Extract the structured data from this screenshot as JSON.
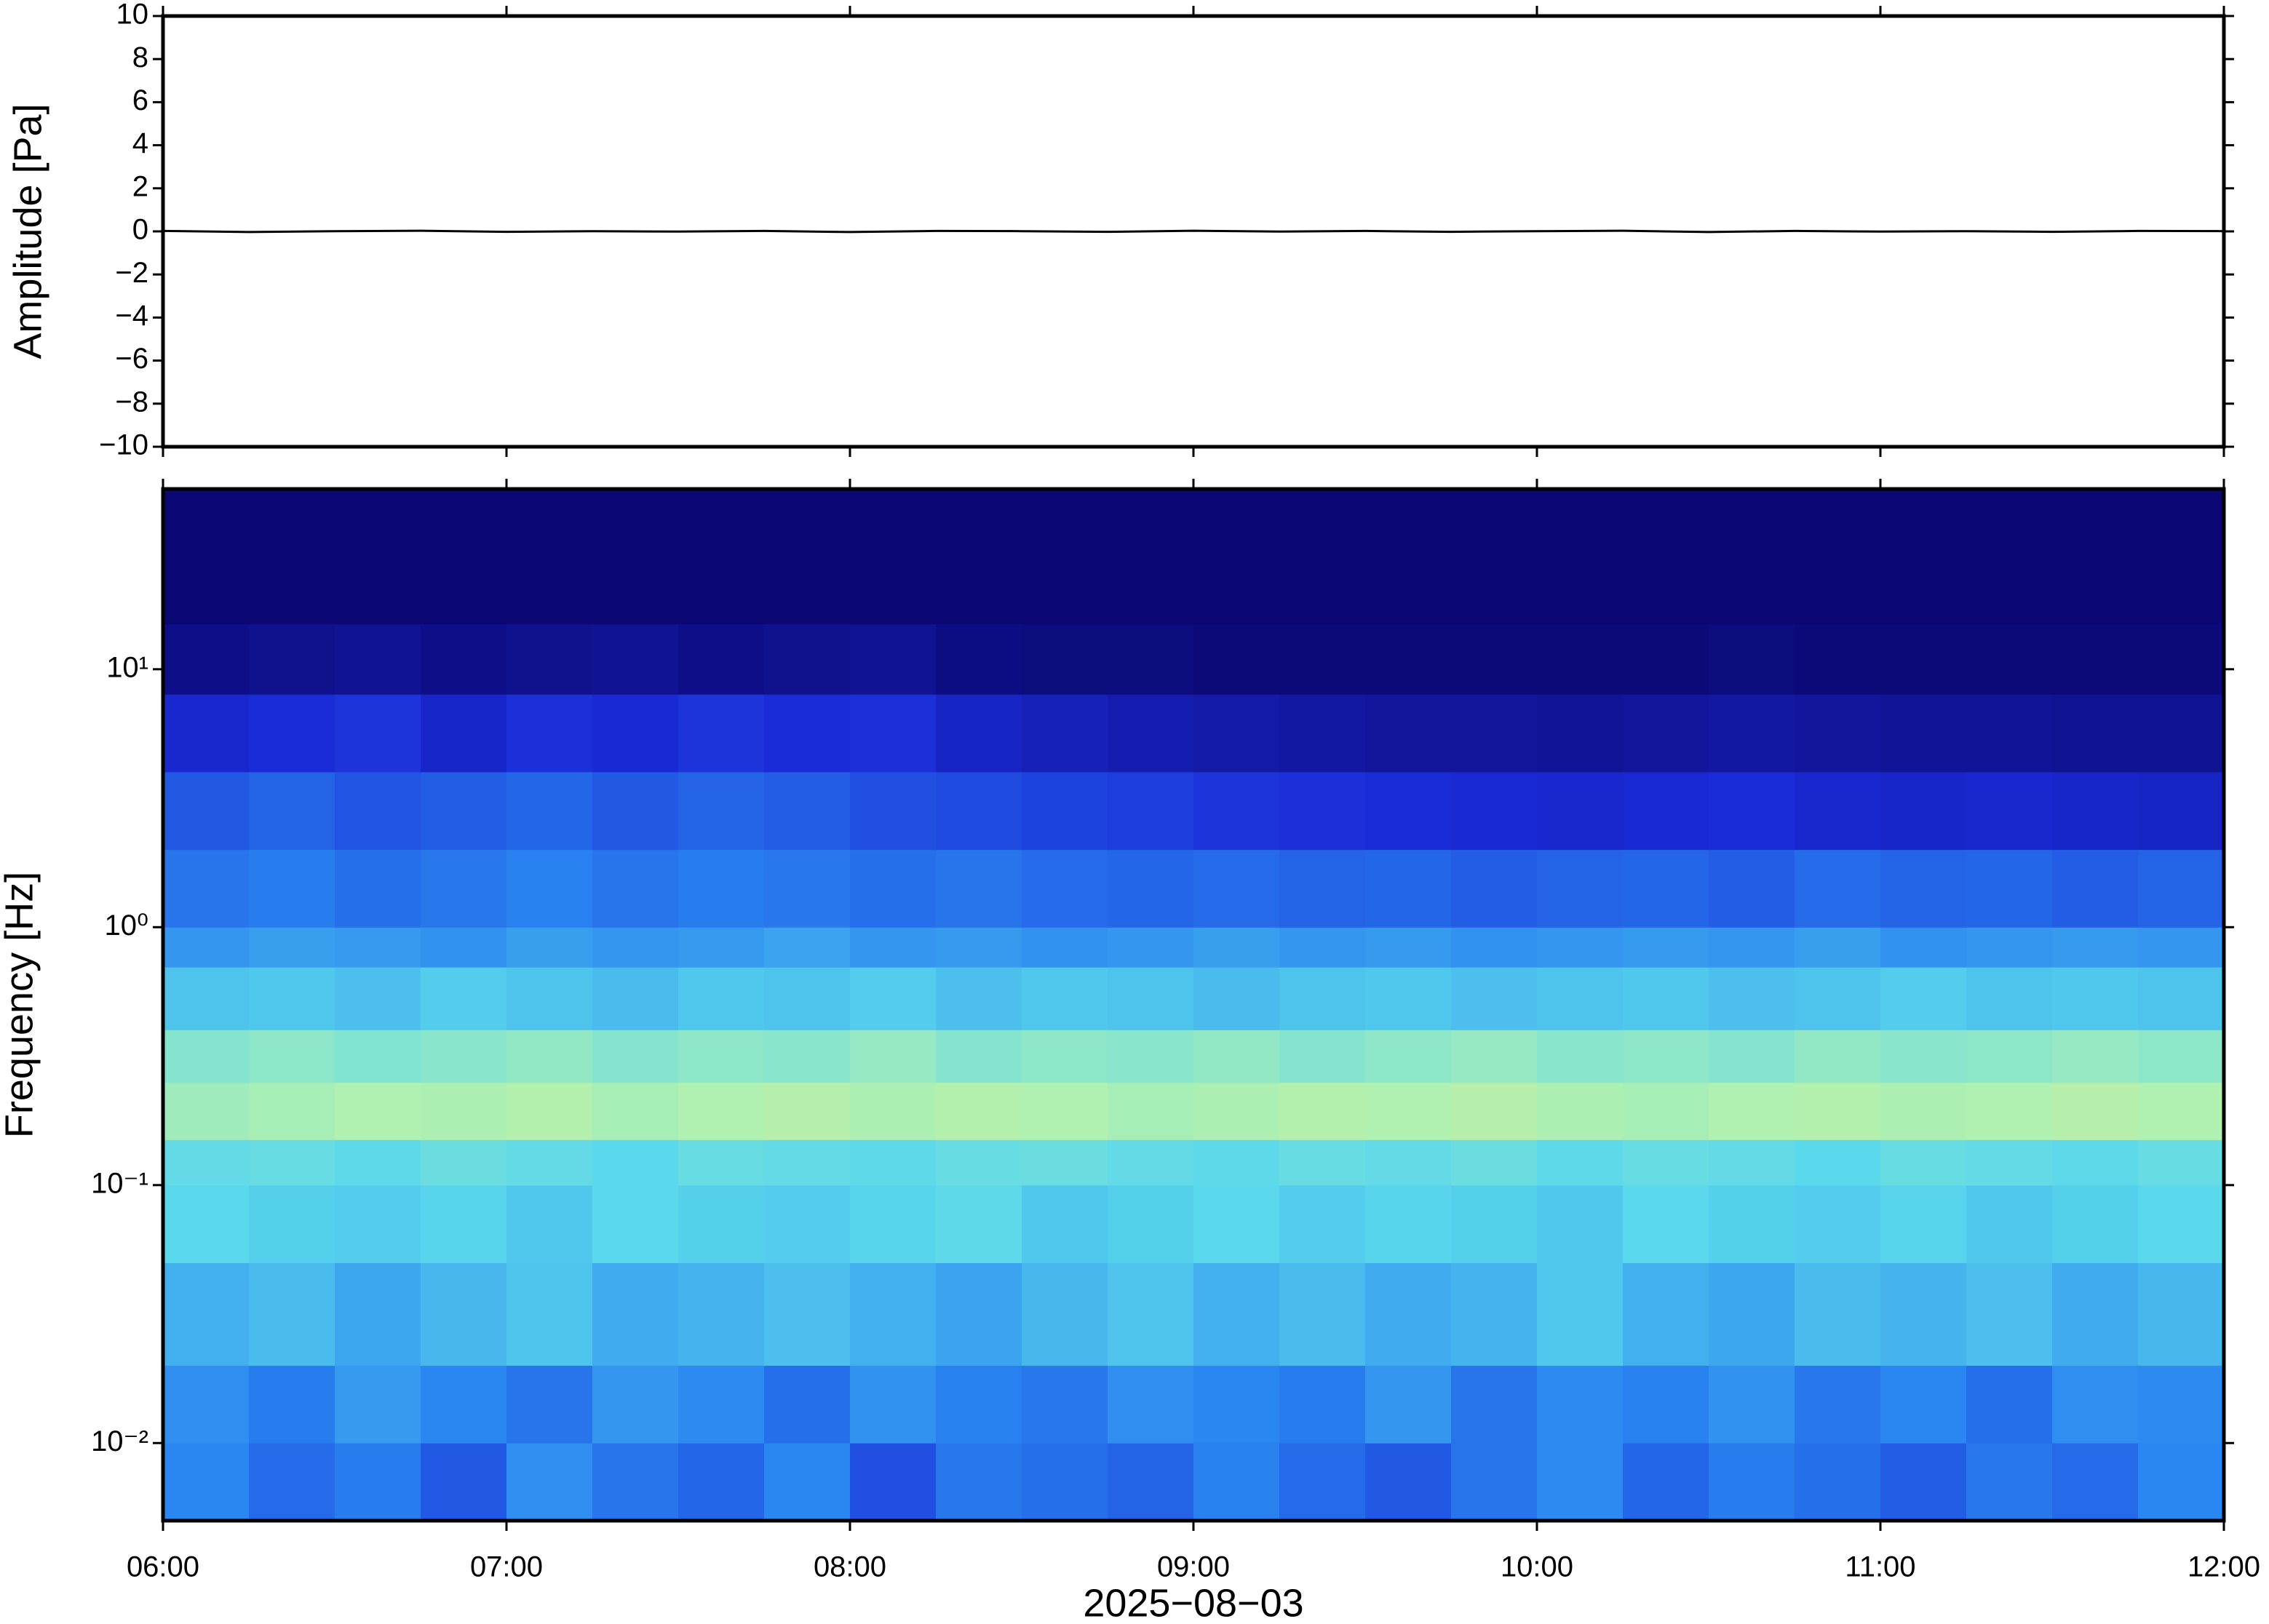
{
  "chart_data": [
    {
      "type": "line",
      "ylabel": "Amplitude [Pa]",
      "x": [
        6,
        6.25,
        6.5,
        6.75,
        7,
        7.25,
        7.5,
        7.75,
        8,
        8.25,
        8.5,
        8.75,
        9,
        9.25,
        9.5,
        9.75,
        10,
        10.25,
        10.5,
        10.75,
        11,
        11.25,
        11.5,
        11.75,
        12
      ],
      "series": [
        {
          "color": "#000000",
          "values": [
            0.02,
            -0.03,
            0.01,
            0.03,
            -0.02,
            0.01,
            -0.01,
            0.02,
            -0.03,
            0.02,
            0.01,
            -0.02,
            0.03,
            -0.01,
            0.02,
            -0.02,
            0.01,
            0.03,
            -0.03,
            0.02,
            -0.01,
            0.01,
            -0.02,
            0.02,
            0.01
          ]
        }
      ],
      "xlim": [
        6,
        12
      ],
      "xticks": [
        6,
        7,
        8,
        9,
        10,
        11,
        12
      ],
      "ylim": [
        -10,
        10
      ],
      "yticks": [
        {
          "value": -10,
          "label": "−10"
        },
        {
          "value": -8,
          "label": "−8"
        },
        {
          "value": -6,
          "label": "−6"
        },
        {
          "value": -4,
          "label": "−4"
        },
        {
          "value": -2,
          "label": "−2"
        },
        0,
        2,
        4,
        6,
        8,
        10
      ]
    },
    {
      "type": "heatmap",
      "ylabel": "Frequency [Hz]",
      "xlabel": "2025−08−03",
      "x_bins": [
        6,
        6.25,
        6.5,
        6.75,
        7,
        7.25,
        7.5,
        7.75,
        8,
        8.25,
        8.5,
        8.75,
        9,
        9.25,
        9.5,
        9.75,
        10,
        10.25,
        10.5,
        10.75,
        11,
        11.25,
        11.5,
        11.75,
        12
      ],
      "y_bins": [
        0.005,
        0.01,
        0.02,
        0.05,
        0.1,
        0.15,
        0.25,
        0.4,
        0.7,
        1,
        2,
        4,
        8,
        15,
        50
      ],
      "z": [
        [
          0.4,
          0.34,
          0.38,
          0.3,
          0.42,
          0.36,
          0.33,
          0.4,
          0.28,
          0.37,
          0.35,
          0.32,
          0.39,
          0.34,
          0.3,
          0.36,
          0.41,
          0.33,
          0.38,
          0.35,
          0.31,
          0.37,
          0.34,
          0.4
        ],
        [
          0.42,
          0.38,
          0.45,
          0.4,
          0.36,
          0.44,
          0.41,
          0.35,
          0.43,
          0.39,
          0.37,
          0.42,
          0.4,
          0.38,
          0.44,
          0.36,
          0.41,
          0.39,
          0.43,
          0.37,
          0.4,
          0.35,
          0.42,
          0.41
        ],
        [
          0.5,
          0.53,
          0.48,
          0.52,
          0.55,
          0.49,
          0.51,
          0.54,
          0.5,
          0.47,
          0.52,
          0.55,
          0.5,
          0.53,
          0.49,
          0.51,
          0.56,
          0.5,
          0.48,
          0.53,
          0.51,
          0.54,
          0.49,
          0.52
        ],
        [
          0.6,
          0.58,
          0.57,
          0.59,
          0.56,
          0.6,
          0.58,
          0.57,
          0.59,
          0.61,
          0.56,
          0.58,
          0.6,
          0.57,
          0.59,
          0.58,
          0.56,
          0.6,
          0.58,
          0.57,
          0.59,
          0.56,
          0.58,
          0.6
        ],
        [
          0.62,
          0.63,
          0.61,
          0.64,
          0.62,
          0.6,
          0.63,
          0.62,
          0.61,
          0.63,
          0.64,
          0.62,
          0.61,
          0.63,
          0.62,
          0.64,
          0.61,
          0.63,
          0.62,
          0.6,
          0.63,
          0.62,
          0.61,
          0.63
        ],
        [
          0.76,
          0.78,
          0.8,
          0.79,
          0.81,
          0.78,
          0.8,
          0.82,
          0.79,
          0.81,
          0.8,
          0.78,
          0.79,
          0.81,
          0.8,
          0.82,
          0.79,
          0.78,
          0.8,
          0.81,
          0.79,
          0.8,
          0.82,
          0.8
        ],
        [
          0.7,
          0.72,
          0.69,
          0.71,
          0.73,
          0.7,
          0.72,
          0.71,
          0.74,
          0.7,
          0.72,
          0.71,
          0.73,
          0.7,
          0.72,
          0.74,
          0.71,
          0.72,
          0.7,
          0.73,
          0.71,
          0.72,
          0.74,
          0.72
        ],
        [
          0.55,
          0.56,
          0.54,
          0.57,
          0.55,
          0.53,
          0.56,
          0.55,
          0.57,
          0.54,
          0.56,
          0.55,
          0.53,
          0.55,
          0.56,
          0.54,
          0.55,
          0.56,
          0.54,
          0.55,
          0.57,
          0.55,
          0.56,
          0.55
        ],
        [
          0.44,
          0.46,
          0.45,
          0.43,
          0.46,
          0.44,
          0.45,
          0.47,
          0.44,
          0.45,
          0.43,
          0.44,
          0.46,
          0.44,
          0.45,
          0.43,
          0.44,
          0.45,
          0.44,
          0.46,
          0.43,
          0.44,
          0.45,
          0.44
        ],
        [
          0.36,
          0.38,
          0.35,
          0.37,
          0.39,
          0.36,
          0.38,
          0.37,
          0.35,
          0.36,
          0.34,
          0.33,
          0.34,
          0.32,
          0.33,
          0.31,
          0.32,
          0.33,
          0.31,
          0.34,
          0.32,
          0.33,
          0.31,
          0.32
        ],
        [
          0.3,
          0.32,
          0.29,
          0.31,
          0.33,
          0.3,
          0.32,
          0.31,
          0.28,
          0.27,
          0.25,
          0.24,
          0.22,
          0.21,
          0.2,
          0.19,
          0.18,
          0.19,
          0.2,
          0.18,
          0.17,
          0.18,
          0.17,
          0.16
        ],
        [
          0.18,
          0.2,
          0.22,
          0.17,
          0.21,
          0.19,
          0.22,
          0.2,
          0.21,
          0.16,
          0.14,
          0.12,
          0.1,
          0.09,
          0.08,
          0.08,
          0.07,
          0.08,
          0.09,
          0.08,
          0.07,
          0.07,
          0.06,
          0.06
        ],
        [
          0.04,
          0.05,
          0.06,
          0.04,
          0.05,
          0.06,
          0.04,
          0.05,
          0.06,
          0.03,
          0.02,
          0.02,
          0.01,
          0.01,
          0.01,
          0.01,
          0.01,
          0.01,
          0.02,
          0.01,
          0.01,
          0.01,
          0.01,
          0.01
        ],
        [
          0,
          0,
          0,
          0,
          0,
          0,
          0,
          0,
          0,
          0,
          0,
          0,
          0,
          0,
          0,
          0,
          0,
          0,
          0,
          0,
          0,
          0,
          0,
          0
        ]
      ],
      "colormap": [
        "#0b0874",
        "#1a2bd8",
        "#2a86f0",
        "#5ad8ec",
        "#b0f0b0",
        "#f0e888"
      ],
      "xlim": [
        6,
        12
      ],
      "xticks": [
        {
          "value": 6,
          "label": "06:00"
        },
        {
          "value": 7,
          "label": "07:00"
        },
        {
          "value": 8,
          "label": "08:00"
        },
        {
          "value": 9,
          "label": "09:00"
        },
        {
          "value": 10,
          "label": "10:00"
        },
        {
          "value": 11,
          "label": "11:00"
        },
        {
          "value": 12,
          "label": "12:00"
        }
      ],
      "ylim": [
        0.005,
        50
      ],
      "log_y": true,
      "yticks": [
        {
          "value": 0.01,
          "label": "10⁻²"
        },
        {
          "value": 0.1,
          "label": "10⁻¹"
        },
        {
          "value": 1,
          "label": "10⁰"
        },
        {
          "value": 10,
          "label": "10¹"
        }
      ]
    }
  ]
}
